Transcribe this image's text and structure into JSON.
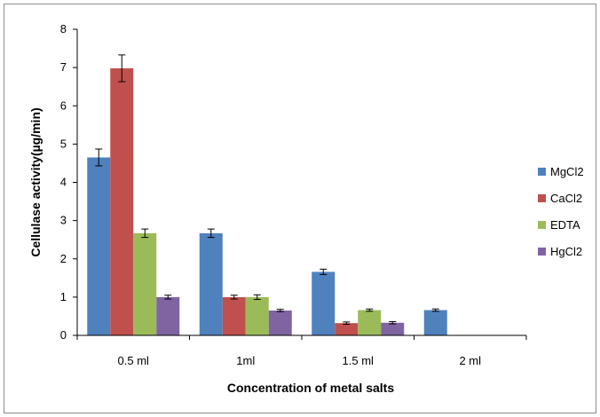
{
  "chart_data": {
    "type": "bar",
    "title": "",
    "xlabel": "Concentration of metal salts",
    "ylabel": "Cellulase activity(µg/min)",
    "ylim": [
      0,
      8
    ],
    "yticks": [
      "0",
      "1",
      "2",
      "3",
      "4",
      "5",
      "6",
      "7",
      "8"
    ],
    "grid": false,
    "legend_position": "right",
    "categories": [
      "0.5 ml",
      "1ml",
      "1.5 ml",
      "2 ml"
    ],
    "series": [
      {
        "name": "MgCl2",
        "color": "#4f81bd",
        "values": [
          4.65,
          2.67,
          1.66,
          0.66
        ],
        "errors": [
          0.22,
          0.11,
          0.07,
          0.03
        ]
      },
      {
        "name": "CaCl2",
        "color": "#c0504d",
        "values": [
          6.98,
          1.0,
          0.32,
          null
        ],
        "errors": [
          0.35,
          0.05,
          0.03,
          null
        ]
      },
      {
        "name": "EDTA",
        "color": "#9bbb59",
        "values": [
          2.67,
          1.0,
          0.66,
          null
        ],
        "errors": [
          0.11,
          0.06,
          0.03,
          null
        ]
      },
      {
        "name": "HgCl2",
        "color": "#8064a2",
        "values": [
          1.0,
          0.65,
          0.33,
          null
        ],
        "errors": [
          0.05,
          0.03,
          0.03,
          null
        ]
      }
    ]
  }
}
